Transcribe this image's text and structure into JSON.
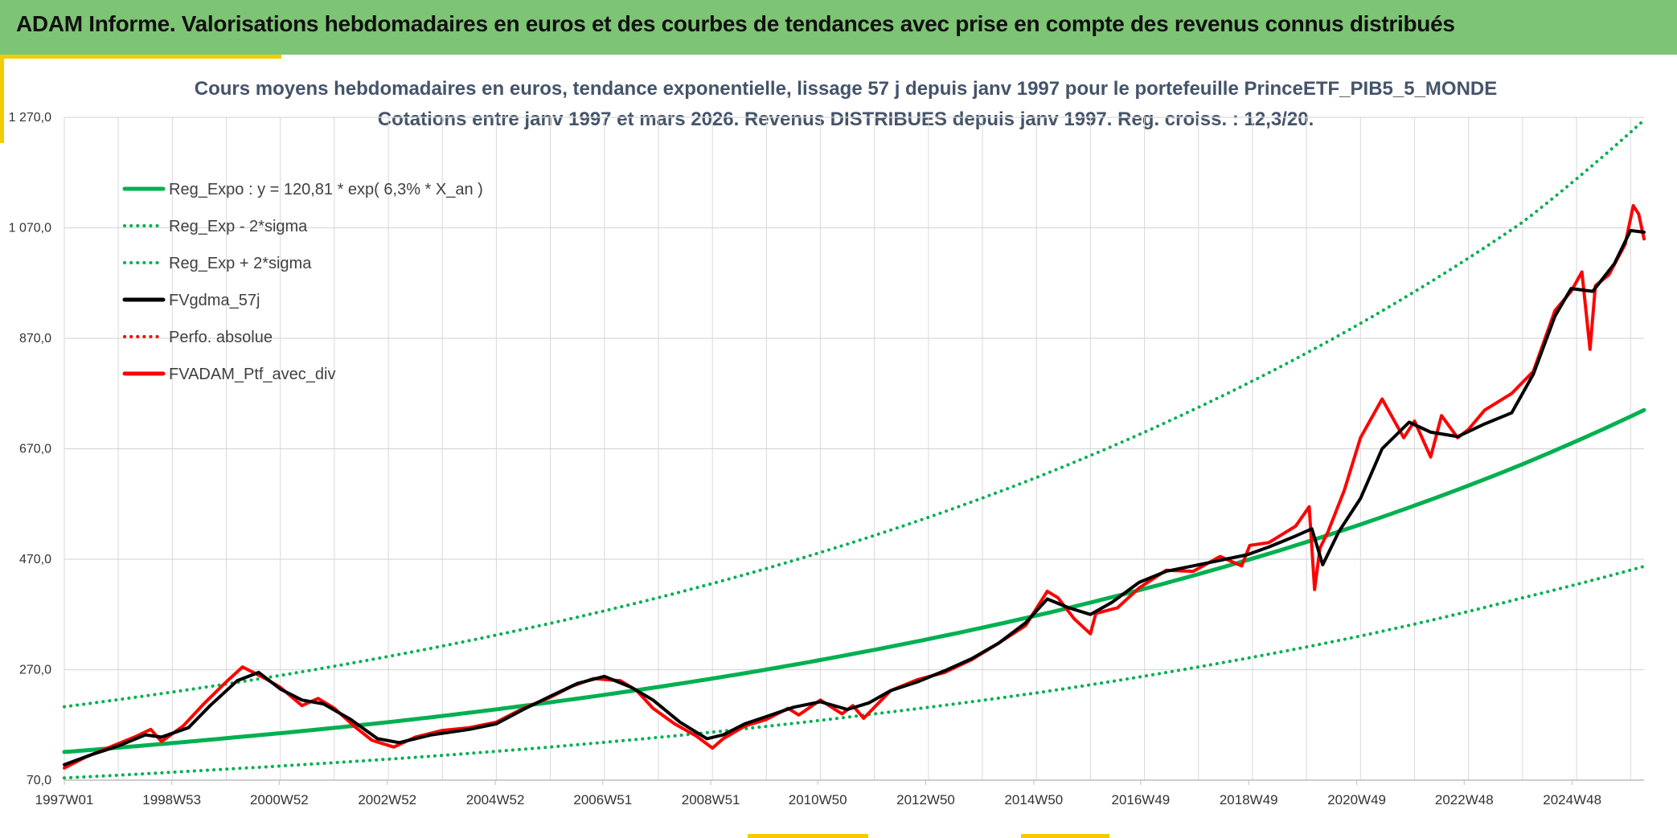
{
  "header": {
    "title": "ADAM Informe. Valorisations hebdomadaires en euros et des courbes de tendances avec prise en compte des revenus connus distribués"
  },
  "colors": {
    "header_bg": "#7dc474",
    "accent": "#f2cc00",
    "green": "#00b050",
    "red": "#ff0000",
    "black": "#000000",
    "grid": "#d9d9d9"
  },
  "chart_data": {
    "type": "line",
    "title_line1": "Cours moyens hebdomadaires en euros, tendance exponentielle, lissage 57 j depuis janv 1997 pour le portefeuille PrinceETF_PIB5_5_MONDE",
    "title_line2": "Cotations entre janv 1997 et mars 2026. Revenus DISTRIBUES depuis janv 1997. Reg. croiss. : 12,3/20.",
    "xlabel": "",
    "ylabel": "",
    "xlim": [
      1997.0,
      2026.25
    ],
    "ylim": [
      70,
      1270
    ],
    "y_ticks": [
      {
        "value": 70,
        "label": "70,0"
      },
      {
        "value": 270,
        "label": "270,0"
      },
      {
        "value": 470,
        "label": "470,0"
      },
      {
        "value": 670,
        "label": "670,0"
      },
      {
        "value": 870,
        "label": "870,0"
      },
      {
        "value": 1070,
        "label": "1 070,0"
      },
      {
        "value": 1270,
        "label": "1 270,0"
      }
    ],
    "x_ticks": [
      {
        "value": 1997.0,
        "label": "1997W01"
      },
      {
        "value": 1998.99,
        "label": "1998W53"
      },
      {
        "value": 2000.98,
        "label": "2000W52"
      },
      {
        "value": 2002.98,
        "label": "2002W52"
      },
      {
        "value": 2004.98,
        "label": "2004W52"
      },
      {
        "value": 2006.97,
        "label": "2006W51"
      },
      {
        "value": 2008.97,
        "label": "2008W51"
      },
      {
        "value": 2010.95,
        "label": "2010W50"
      },
      {
        "value": 2012.95,
        "label": "2012W50"
      },
      {
        "value": 2014.95,
        "label": "2014W50"
      },
      {
        "value": 2016.93,
        "label": "2016W49"
      },
      {
        "value": 2018.93,
        "label": "2018W49"
      },
      {
        "value": 2020.93,
        "label": "2020W49"
      },
      {
        "value": 2022.92,
        "label": "2022W48"
      },
      {
        "value": 2024.92,
        "label": "2024W48"
      }
    ],
    "grid": true,
    "legend_position": "top-left",
    "legend": [
      {
        "label": "Reg_Expo : y = 120,81 * exp( 6,3% *  X_an )",
        "color": "#00b050",
        "style": "solid"
      },
      {
        "label": "Reg_Exp - 2*sigma",
        "color": "#00b050",
        "style": "dotted"
      },
      {
        "label": "Reg_Exp + 2*sigma",
        "color": "#00b050",
        "style": "dotted"
      },
      {
        "label": "FVgdma_57j",
        "color": "#000000",
        "style": "solid"
      },
      {
        "label": "Perfo. absolue",
        "color": "#ff0000",
        "style": "dotted"
      },
      {
        "label": "FVADAM_Ptf_avec_div",
        "color": "#ff0000",
        "style": "solid"
      }
    ],
    "series": [
      {
        "name": "Reg_Expo : y = 120,81 * exp( 6,3% *  X_an )",
        "x": [
          1997.0,
          2000.0,
          2003.0,
          2006.0,
          2009.0,
          2012.0,
          2015.0,
          2018.0,
          2021.0,
          2024.0,
          2026.25
        ],
        "values": [
          121,
          146,
          175,
          211,
          254,
          306,
          368,
          443,
          533,
          642,
          740
        ]
      },
      {
        "name": "Reg_Exp - 2*sigma",
        "x": [
          1997.0,
          2000.0,
          2003.0,
          2006.0,
          2009.0,
          2012.0,
          2015.0,
          2018.0,
          2021.0,
          2024.0,
          2026.25
        ],
        "values": [
          74,
          90,
          108,
          130,
          157,
          190,
          228,
          275,
          331,
          400,
          457
        ]
      },
      {
        "name": "Reg_Exp + 2*sigma",
        "x": [
          1997.0,
          2000.0,
          2003.0,
          2006.0,
          2009.0,
          2012.0,
          2015.0,
          2018.0,
          2021.0,
          2024.0,
          2026.25
        ],
        "values": [
          203,
          244,
          294,
          354,
          426,
          513,
          618,
          745,
          897,
          1080,
          1265
        ]
      },
      {
        "name": "FVgdma_57j",
        "x": [
          1997.0,
          1997.5,
          1998.0,
          1998.5,
          1998.8,
          1999.3,
          1999.7,
          2000.2,
          2000.6,
          2001.0,
          2001.4,
          2001.8,
          2002.3,
          2002.8,
          2003.2,
          2003.8,
          2004.5,
          2005.0,
          2005.5,
          2006.0,
          2006.5,
          2007.0,
          2007.5,
          2007.9,
          2008.4,
          2008.9,
          2009.2,
          2009.6,
          2010.0,
          2010.5,
          2011.0,
          2011.5,
          2011.9,
          2012.3,
          2012.8,
          2013.3,
          2013.8,
          2014.3,
          2014.8,
          2015.2,
          2015.6,
          2016.0,
          2016.4,
          2016.9,
          2017.4,
          2017.9,
          2018.4,
          2018.9,
          2019.3,
          2019.8,
          2020.1,
          2020.3,
          2020.6,
          2021.0,
          2021.4,
          2021.9,
          2022.3,
          2022.8,
          2023.3,
          2023.8,
          2024.2,
          2024.6,
          2024.9,
          2025.3,
          2025.7,
          2026.0,
          2026.25
        ],
        "values": [
          98,
          116,
          132,
          152,
          148,
          165,
          205,
          250,
          265,
          235,
          215,
          208,
          180,
          145,
          138,
          152,
          162,
          172,
          198,
          222,
          245,
          258,
          238,
          215,
          175,
          145,
          152,
          172,
          185,
          202,
          212,
          198,
          210,
          232,
          248,
          268,
          290,
          318,
          355,
          398,
          382,
          370,
          392,
          428,
          448,
          458,
          468,
          478,
          492,
          512,
          525,
          460,
          520,
          580,
          670,
          718,
          700,
          692,
          715,
          735,
          805,
          910,
          960,
          955,
          1005,
          1065,
          1062
        ]
      },
      {
        "name": "FVADAM_Ptf_avec_div",
        "x": [
          1997.0,
          1997.4,
          1997.8,
          1998.3,
          1998.6,
          1998.8,
          1999.2,
          1999.6,
          2000.0,
          2000.3,
          2000.7,
          2001.0,
          2001.4,
          2001.7,
          2002.0,
          2002.4,
          2002.7,
          2003.1,
          2003.5,
          2004.0,
          2004.5,
          2005.0,
          2005.5,
          2006.0,
          2006.4,
          2006.8,
          2007.3,
          2007.6,
          2007.9,
          2008.3,
          2008.7,
          2009.0,
          2009.2,
          2009.6,
          2010.0,
          2010.4,
          2010.6,
          2011.0,
          2011.4,
          2011.6,
          2011.8,
          2012.3,
          2012.8,
          2013.3,
          2013.8,
          2014.3,
          2014.8,
          2015.2,
          2015.4,
          2015.7,
          2016.0,
          2016.1,
          2016.5,
          2016.9,
          2017.4,
          2017.9,
          2018.4,
          2018.8,
          2018.95,
          2019.3,
          2019.8,
          2020.05,
          2020.15,
          2020.25,
          2020.4,
          2020.7,
          2021.0,
          2021.4,
          2021.8,
          2022.0,
          2022.3,
          2022.5,
          2022.8,
          2023.0,
          2023.3,
          2023.8,
          2024.2,
          2024.6,
          2024.9,
          2025.1,
          2025.25,
          2025.35,
          2025.6,
          2025.9,
          2026.05,
          2026.15,
          2026.25
        ],
        "values": [
          92,
          112,
          128,
          148,
          162,
          140,
          168,
          210,
          248,
          275,
          255,
          238,
          205,
          218,
          200,
          165,
          142,
          130,
          148,
          160,
          165,
          175,
          200,
          220,
          240,
          254,
          250,
          232,
          200,
          172,
          150,
          128,
          145,
          168,
          180,
          200,
          188,
          215,
          190,
          205,
          182,
          232,
          252,
          265,
          288,
          318,
          350,
          412,
          400,
          362,
          335,
          372,
          382,
          418,
          450,
          448,
          475,
          458,
          495,
          500,
          530,
          565,
          415,
          490,
          520,
          595,
          690,
          760,
          690,
          720,
          655,
          730,
          690,
          705,
          740,
          770,
          810,
          920,
          955,
          990,
          850,
          965,
          985,
          1040,
          1110,
          1095,
          1050
        ]
      }
    ]
  }
}
